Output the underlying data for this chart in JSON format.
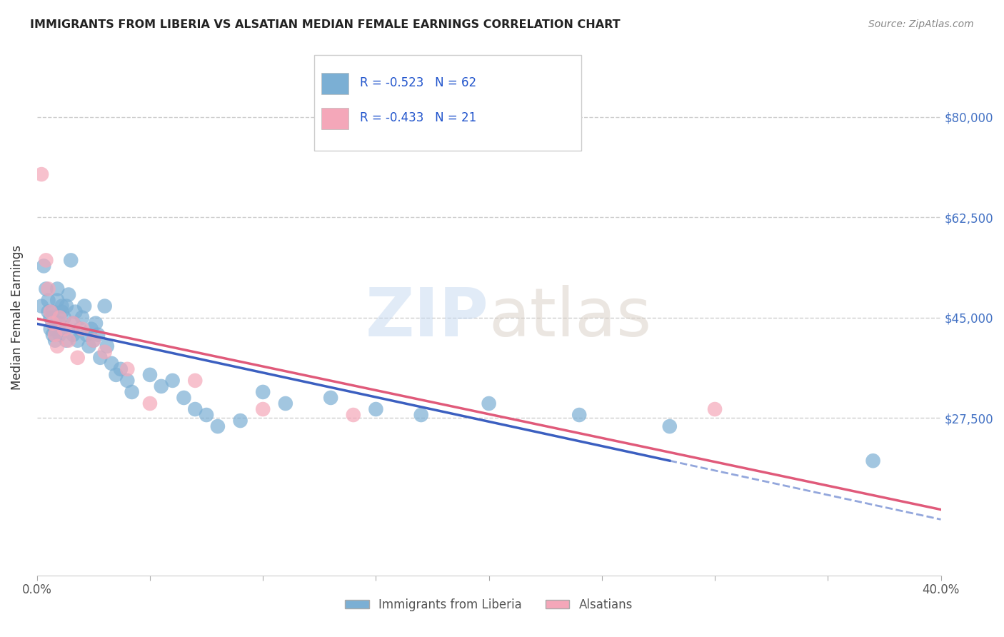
{
  "title": "IMMIGRANTS FROM LIBERIA VS ALSATIAN MEDIAN FEMALE EARNINGS CORRELATION CHART",
  "source": "Source: ZipAtlas.com",
  "ylabel": "Median Female Earnings",
  "xlim": [
    0.0,
    0.4
  ],
  "ylim": [
    0,
    90000
  ],
  "grid_color": "#cccccc",
  "background_color": "#ffffff",
  "blue_color": "#7bafd4",
  "pink_color": "#f4a7b9",
  "blue_line_color": "#3b5fc0",
  "pink_line_color": "#e05a7a",
  "legend_R_blue": "R = -0.523",
  "legend_N_blue": "N = 62",
  "legend_R_pink": "R = -0.433",
  "legend_N_pink": "N = 21",
  "legend_label_blue": "Immigrants from Liberia",
  "legend_label_pink": "Alsatians",
  "blue_x": [
    0.002,
    0.003,
    0.004,
    0.005,
    0.005,
    0.006,
    0.006,
    0.007,
    0.007,
    0.007,
    0.008,
    0.008,
    0.009,
    0.009,
    0.01,
    0.01,
    0.011,
    0.011,
    0.012,
    0.012,
    0.013,
    0.013,
    0.014,
    0.015,
    0.016,
    0.016,
    0.017,
    0.018,
    0.019,
    0.02,
    0.021,
    0.022,
    0.023,
    0.024,
    0.025,
    0.026,
    0.027,
    0.028,
    0.03,
    0.031,
    0.033,
    0.035,
    0.037,
    0.04,
    0.042,
    0.05,
    0.055,
    0.06,
    0.065,
    0.07,
    0.075,
    0.08,
    0.09,
    0.1,
    0.11,
    0.13,
    0.15,
    0.17,
    0.2,
    0.24,
    0.28,
    0.37
  ],
  "blue_y": [
    47000,
    54000,
    50000,
    46000,
    48000,
    43000,
    45000,
    42000,
    44000,
    46000,
    41000,
    43000,
    48000,
    50000,
    42000,
    44000,
    46000,
    47000,
    43000,
    45000,
    41000,
    47000,
    49000,
    55000,
    42000,
    44000,
    46000,
    41000,
    43000,
    45000,
    47000,
    42000,
    40000,
    43000,
    41000,
    44000,
    42000,
    38000,
    47000,
    40000,
    37000,
    35000,
    36000,
    34000,
    32000,
    35000,
    33000,
    34000,
    31000,
    29000,
    28000,
    26000,
    27000,
    32000,
    30000,
    31000,
    29000,
    28000,
    30000,
    28000,
    26000,
    20000
  ],
  "pink_x": [
    0.002,
    0.004,
    0.005,
    0.006,
    0.007,
    0.008,
    0.009,
    0.01,
    0.012,
    0.014,
    0.016,
    0.018,
    0.02,
    0.025,
    0.03,
    0.04,
    0.05,
    0.07,
    0.1,
    0.14,
    0.3
  ],
  "pink_y": [
    70000,
    55000,
    50000,
    46000,
    44000,
    42000,
    40000,
    45000,
    43000,
    41000,
    44000,
    38000,
    43000,
    41000,
    39000,
    36000,
    30000,
    34000,
    29000,
    28000,
    29000
  ]
}
